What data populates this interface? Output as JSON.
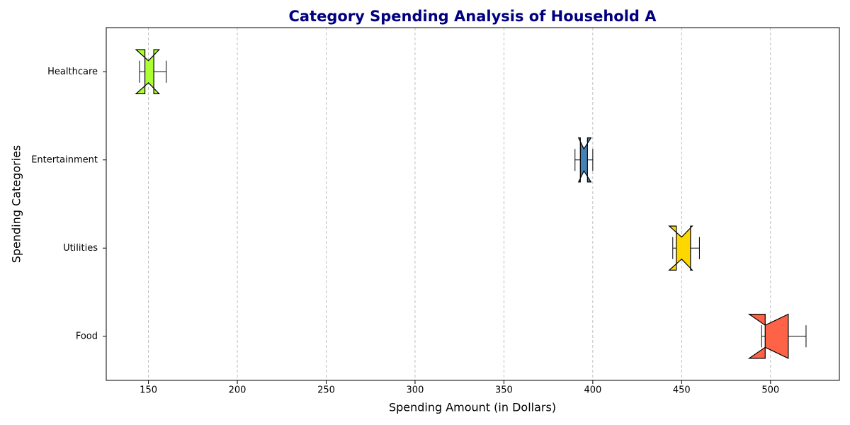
{
  "chart_data": {
    "type": "boxplot",
    "title": "Category Spending Analysis of Household A",
    "x_label": "Spending Amount (in Dollars)",
    "y_label": "Spending Categories",
    "categories": [
      "Food",
      "Utilities",
      "Entertainment",
      "Healthcare"
    ],
    "boxes": [
      {
        "whislo": 495,
        "q1": 497,
        "med": 497,
        "q3": 510,
        "whishi": 520,
        "notch_low": 488,
        "notch_high": 510,
        "color": "#ff6347"
      },
      {
        "whislo": 445,
        "q1": 447,
        "med": 450,
        "q3": 455,
        "whishi": 460,
        "notch_low": 443,
        "notch_high": 456,
        "color": "#ffd700"
      },
      {
        "whislo": 390,
        "q1": 393,
        "med": 395,
        "q3": 397,
        "whishi": 400,
        "notch_low": 392,
        "notch_high": 399,
        "color": "#4682b4"
      },
      {
        "whislo": 145,
        "q1": 148,
        "med": 150,
        "q3": 153,
        "whishi": 160,
        "notch_low": 143,
        "notch_high": 156,
        "color": "#adff2f"
      }
    ],
    "xlim": [
      126.25,
      538.75
    ],
    "xticks": [
      150,
      200,
      250,
      300,
      350,
      400,
      450,
      500
    ],
    "grid": true
  }
}
